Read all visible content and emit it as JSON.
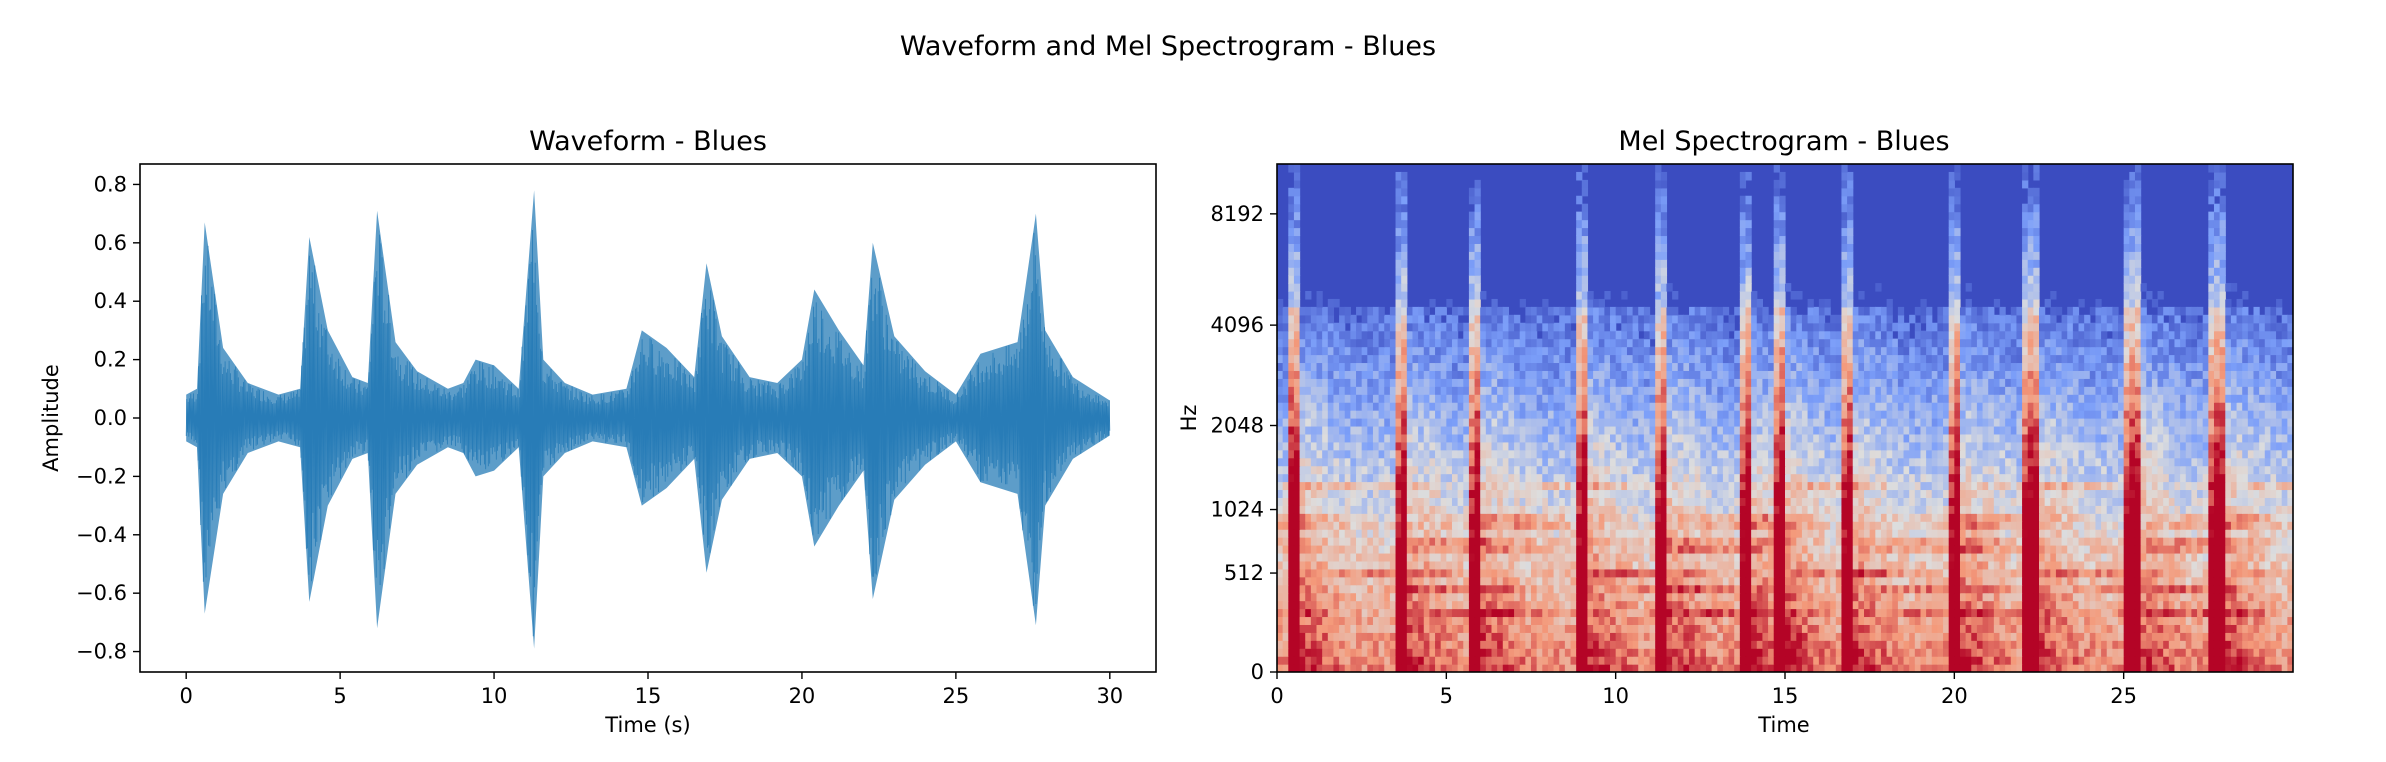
{
  "figure": {
    "suptitle": "Waveform and Mel Spectrogram - Blues"
  },
  "chart_data": [
    {
      "type": "line",
      "title": "Waveform - Blues",
      "xlabel": "Time (s)",
      "ylabel": "Amplitude",
      "xlim": [
        -1.5,
        31.5
      ],
      "ylim": [
        -0.87,
        0.87
      ],
      "xticks": [
        0,
        5,
        10,
        15,
        20,
        25,
        30
      ],
      "yticks": [
        -0.8,
        -0.6,
        -0.4,
        -0.2,
        0.0,
        0.2,
        0.4,
        0.6,
        0.8
      ],
      "xtick_labels": [
        "0",
        "5",
        "10",
        "15",
        "20",
        "25",
        "30"
      ],
      "ytick_labels": [
        "−0.8",
        "−0.6",
        "−0.4",
        "−0.2",
        "0.0",
        "0.2",
        "0.4",
        "0.6",
        "0.8"
      ],
      "grid": false,
      "series": [
        {
          "color": "#1f77b4",
          "x": [
            0,
            0.35,
            0.6,
            1.2,
            2.0,
            3.0,
            3.7,
            4.0,
            4.6,
            5.4,
            5.9,
            6.2,
            6.8,
            7.5,
            8.5,
            9.0,
            9.4,
            10.0,
            10.8,
            11.3,
            11.6,
            12.3,
            13.2,
            14.3,
            14.8,
            15.6,
            16.5,
            16.9,
            17.4,
            18.3,
            19.2,
            20.0,
            20.4,
            21.2,
            22.0,
            22.3,
            23.0,
            24.0,
            25.0,
            25.8,
            27.0,
            27.6,
            27.9,
            28.8,
            30.0
          ],
          "envelope_max": [
            0.08,
            0.1,
            0.67,
            0.24,
            0.12,
            0.08,
            0.1,
            0.62,
            0.3,
            0.14,
            0.12,
            0.71,
            0.26,
            0.16,
            0.1,
            0.12,
            0.2,
            0.18,
            0.1,
            0.78,
            0.2,
            0.12,
            0.08,
            0.1,
            0.3,
            0.24,
            0.14,
            0.53,
            0.28,
            0.14,
            0.12,
            0.2,
            0.44,
            0.3,
            0.18,
            0.6,
            0.28,
            0.16,
            0.08,
            0.22,
            0.26,
            0.7,
            0.3,
            0.14,
            0.06
          ],
          "envelope_min": [
            -0.08,
            -0.1,
            -0.67,
            -0.26,
            -0.12,
            -0.08,
            -0.1,
            -0.63,
            -0.3,
            -0.14,
            -0.12,
            -0.72,
            -0.26,
            -0.16,
            -0.1,
            -0.12,
            -0.2,
            -0.18,
            -0.1,
            -0.79,
            -0.2,
            -0.12,
            -0.08,
            -0.1,
            -0.3,
            -0.24,
            -0.14,
            -0.53,
            -0.28,
            -0.14,
            -0.12,
            -0.2,
            -0.44,
            -0.3,
            -0.18,
            -0.62,
            -0.28,
            -0.16,
            -0.08,
            -0.22,
            -0.26,
            -0.71,
            -0.3,
            -0.14,
            -0.06
          ]
        }
      ]
    },
    {
      "type": "heatmap",
      "title": "Mel Spectrogram - Blues",
      "xlabel": "Time",
      "ylabel": "Hz",
      "xlim": [
        0,
        30
      ],
      "yscale": "mel",
      "xticks": [
        0,
        5,
        10,
        15,
        20,
        25
      ],
      "xtick_labels": [
        "0",
        "5",
        "10",
        "15",
        "20",
        "25"
      ],
      "yticks": [
        0,
        512,
        1024,
        2048,
        4096,
        8192
      ],
      "ytick_labels": [
        "0",
        "512",
        "1024",
        "2048",
        "4096",
        "8192"
      ],
      "colormap": "coolwarm",
      "onsets_s": [
        0.4,
        3.6,
        5.8,
        9.0,
        11.3,
        13.8,
        14.8,
        16.8,
        20.0,
        22.2,
        25.2,
        27.7
      ],
      "sustained_bands_hz": [
        160,
        260,
        380,
        520,
        700,
        900,
        1250
      ],
      "cool_color": "#3b4cc0",
      "warm_color": "#b40426"
    }
  ]
}
